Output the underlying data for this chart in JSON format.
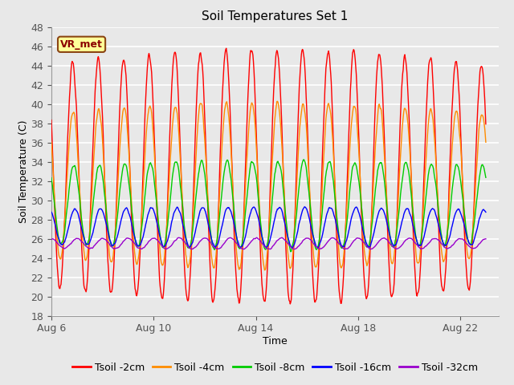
{
  "title": "Soil Temperatures Set 1",
  "xlabel": "Time",
  "ylabel": "Soil Temperature (C)",
  "ylim": [
    18,
    48
  ],
  "yticks": [
    18,
    20,
    22,
    24,
    26,
    28,
    30,
    32,
    34,
    36,
    38,
    40,
    42,
    44,
    46,
    48
  ],
  "xtick_positions": [
    0,
    4,
    8,
    12,
    16
  ],
  "xtick_labels": [
    "Aug 6",
    "Aug 10",
    "Aug 14",
    "Aug 18",
    "Aug 22"
  ],
  "xlim": [
    0,
    17.5
  ],
  "annotation_text": "VR_met",
  "series_order": [
    "Tsoil -2cm",
    "Tsoil -4cm",
    "Tsoil -8cm",
    "Tsoil -16cm",
    "Tsoil -32cm"
  ],
  "series_colors": {
    "Tsoil -2cm": "#FF0000",
    "Tsoil -4cm": "#FF8C00",
    "Tsoil -8cm": "#00CC00",
    "Tsoil -16cm": "#0000FF",
    "Tsoil -32cm": "#9900CC"
  },
  "bg_color": "#E8E8E8",
  "grid_color": "#FFFFFF",
  "title_fontsize": 11,
  "axis_label_fontsize": 9,
  "tick_fontsize": 9,
  "legend_fontsize": 9,
  "linewidth": 1.0
}
